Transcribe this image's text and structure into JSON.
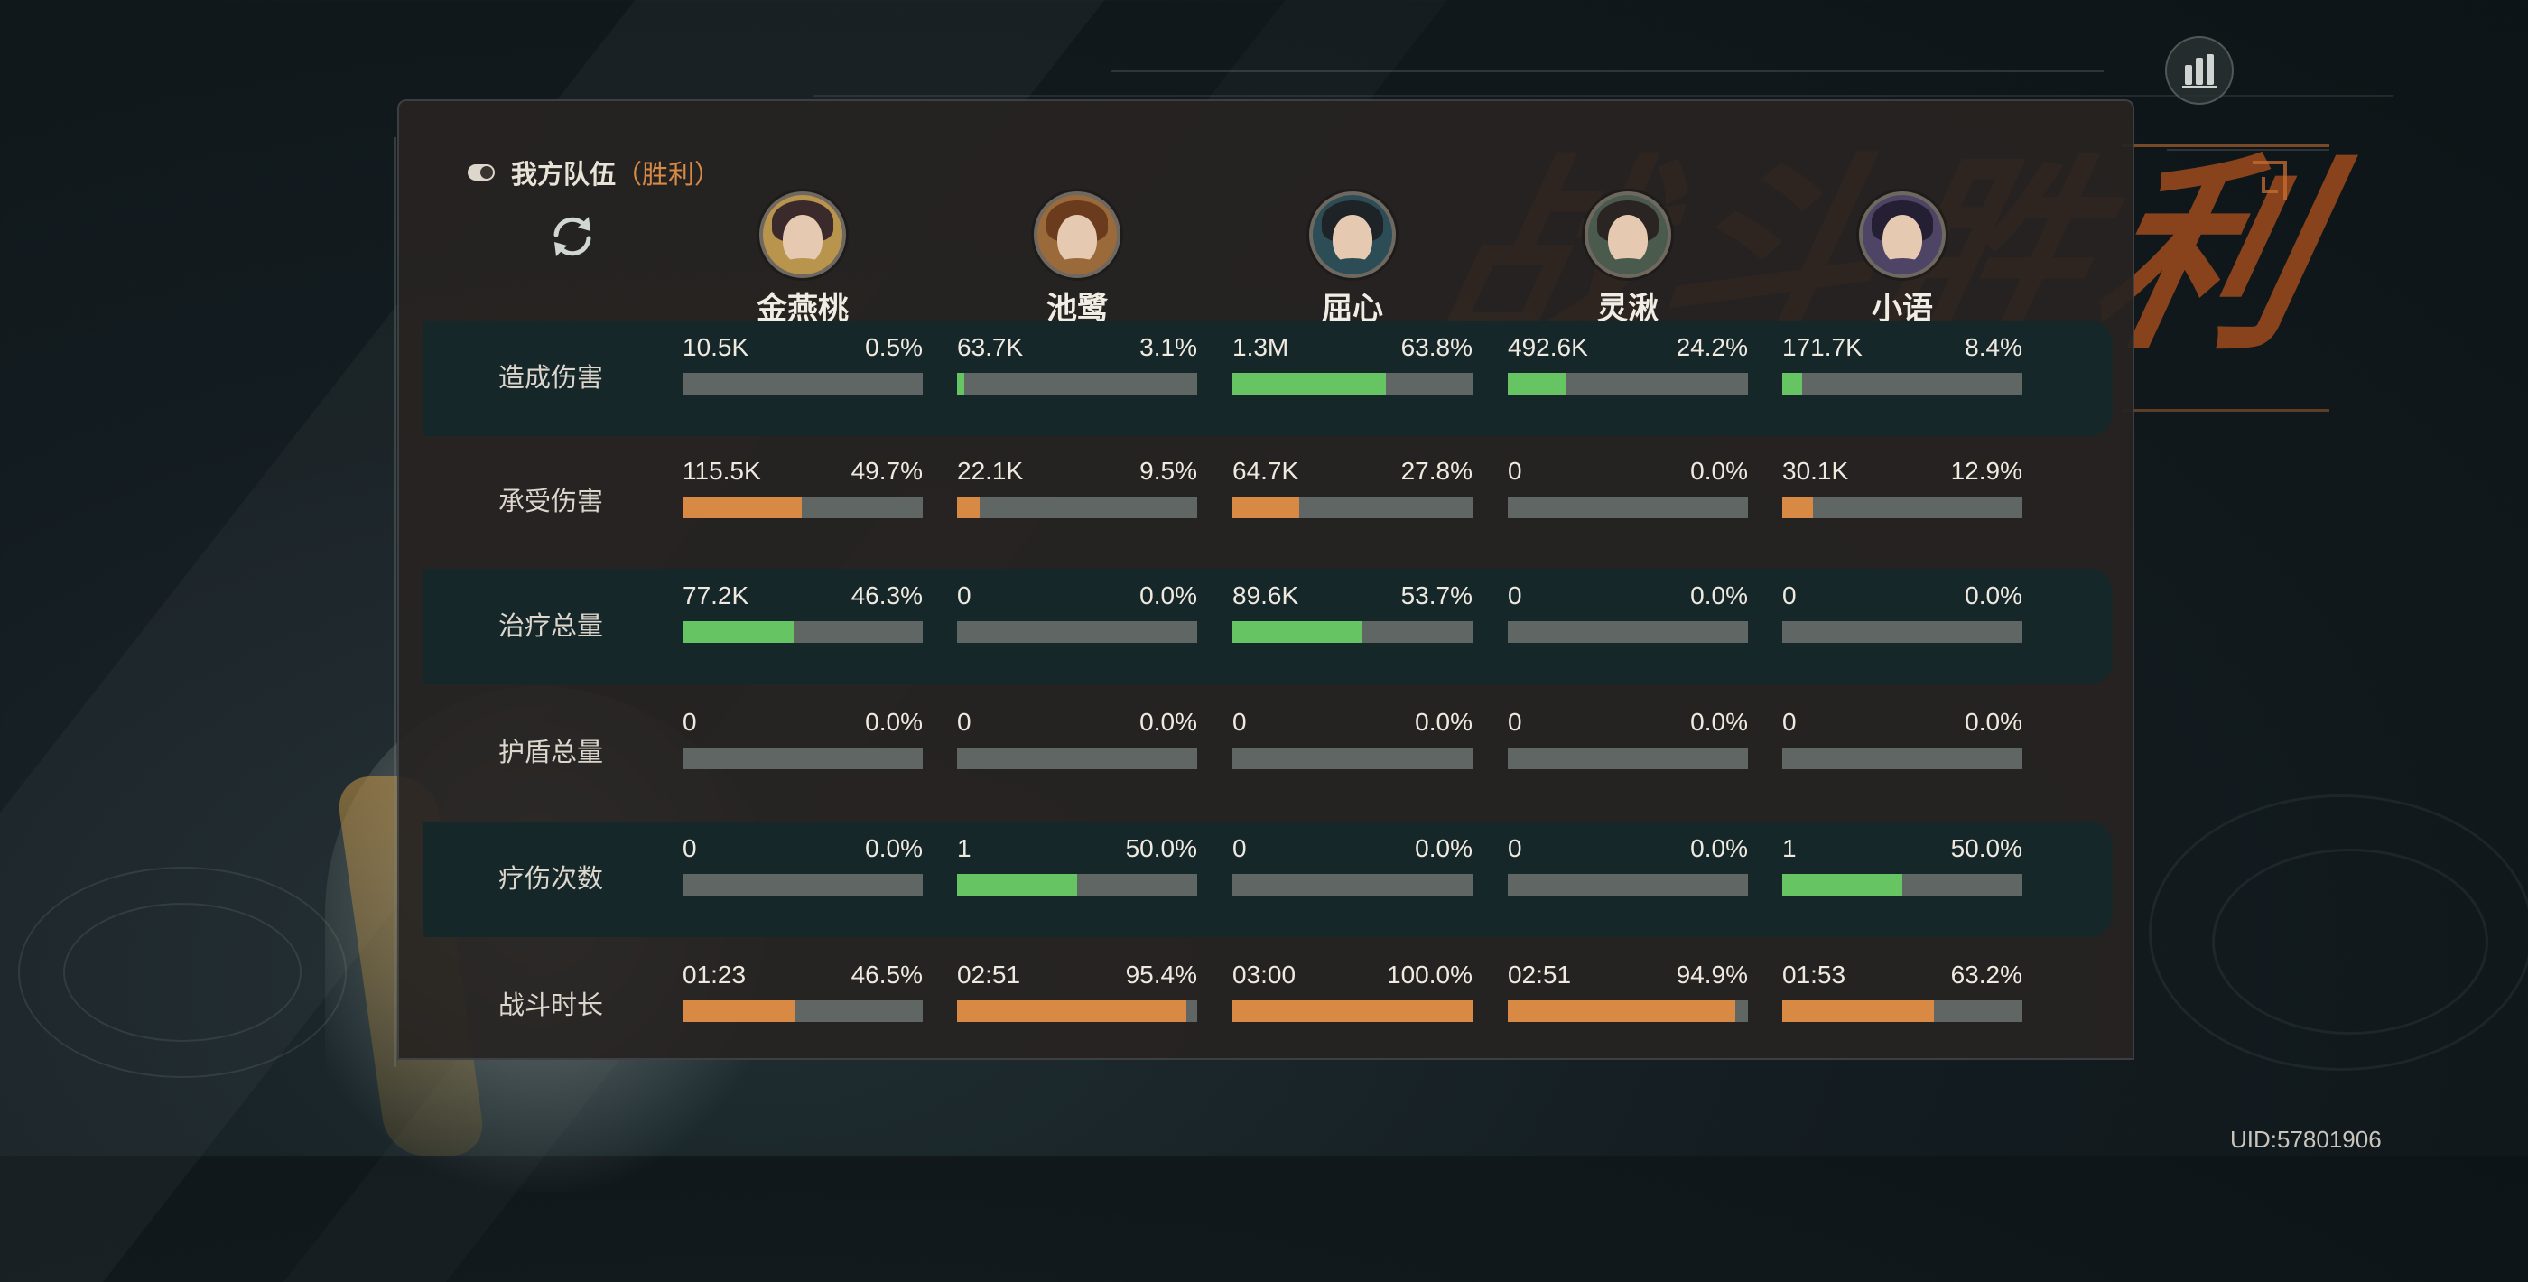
{
  "team": {
    "label": "我方队伍",
    "result": "（胜利）"
  },
  "background_text": "战斗胜利",
  "heroes": [
    {
      "name": "金燕桃",
      "hair": "#3a2a2c",
      "body": "#b8944c"
    },
    {
      "name": "池鹭",
      "hair": "#6b3b1e",
      "body": "#9b6a3a"
    },
    {
      "name": "屈心",
      "hair": "#1e2328",
      "body": "#2c4d56"
    },
    {
      "name": "灵湫",
      "hair": "#2a2422",
      "body": "#4a5a4c"
    },
    {
      "name": "小语",
      "hair": "#241f33",
      "body": "#4e4466"
    }
  ],
  "rows": [
    {
      "label": "造成伤害",
      "color": "green",
      "cells": [
        {
          "value": "10.5K",
          "percent": "0.5%",
          "fraction": 0.005
        },
        {
          "value": "63.7K",
          "percent": "3.1%",
          "fraction": 0.031
        },
        {
          "value": "1.3M",
          "percent": "63.8%",
          "fraction": 0.638
        },
        {
          "value": "492.6K",
          "percent": "24.2%",
          "fraction": 0.242
        },
        {
          "value": "171.7K",
          "percent": "8.4%",
          "fraction": 0.084
        }
      ]
    },
    {
      "label": "承受伤害",
      "color": "orange",
      "cells": [
        {
          "value": "115.5K",
          "percent": "49.7%",
          "fraction": 0.497
        },
        {
          "value": "22.1K",
          "percent": "9.5%",
          "fraction": 0.095
        },
        {
          "value": "64.7K",
          "percent": "27.8%",
          "fraction": 0.278
        },
        {
          "value": "0",
          "percent": "0.0%",
          "fraction": 0
        },
        {
          "value": "30.1K",
          "percent": "12.9%",
          "fraction": 0.129
        }
      ]
    },
    {
      "label": "治疗总量",
      "color": "green",
      "cells": [
        {
          "value": "77.2K",
          "percent": "46.3%",
          "fraction": 0.463
        },
        {
          "value": "0",
          "percent": "0.0%",
          "fraction": 0
        },
        {
          "value": "89.6K",
          "percent": "53.7%",
          "fraction": 0.537
        },
        {
          "value": "0",
          "percent": "0.0%",
          "fraction": 0
        },
        {
          "value": "0",
          "percent": "0.0%",
          "fraction": 0
        }
      ]
    },
    {
      "label": "护盾总量",
      "color": "green",
      "cells": [
        {
          "value": "0",
          "percent": "0.0%",
          "fraction": 0
        },
        {
          "value": "0",
          "percent": "0.0%",
          "fraction": 0
        },
        {
          "value": "0",
          "percent": "0.0%",
          "fraction": 0
        },
        {
          "value": "0",
          "percent": "0.0%",
          "fraction": 0
        },
        {
          "value": "0",
          "percent": "0.0%",
          "fraction": 0
        }
      ]
    },
    {
      "label": "疗伤次数",
      "color": "green",
      "cells": [
        {
          "value": "0",
          "percent": "0.0%",
          "fraction": 0
        },
        {
          "value": "1",
          "percent": "50.0%",
          "fraction": 0.5
        },
        {
          "value": "0",
          "percent": "0.0%",
          "fraction": 0
        },
        {
          "value": "0",
          "percent": "0.0%",
          "fraction": 0
        },
        {
          "value": "1",
          "percent": "50.0%",
          "fraction": 0.5
        }
      ]
    },
    {
      "label": "战斗时长",
      "color": "orange",
      "cells": [
        {
          "value": "01:23",
          "percent": "46.5%",
          "fraction": 0.465
        },
        {
          "value": "02:51",
          "percent": "95.4%",
          "fraction": 0.954
        },
        {
          "value": "03:00",
          "percent": "100.0%",
          "fraction": 1.0
        },
        {
          "value": "02:51",
          "percent": "94.9%",
          "fraction": 0.949
        },
        {
          "value": "01:53",
          "percent": "63.2%",
          "fraction": 0.632
        }
      ]
    }
  ],
  "colors": {
    "green": "#67c463",
    "orange": "#d88944",
    "bar_track": "#5f6664",
    "band": "#16272a",
    "accent": "#d78a45"
  },
  "icons": {
    "stats": "bar-chart-icon",
    "refresh": "refresh-icon",
    "toggle": "toggle-icon"
  },
  "uid": "UID:57801906"
}
